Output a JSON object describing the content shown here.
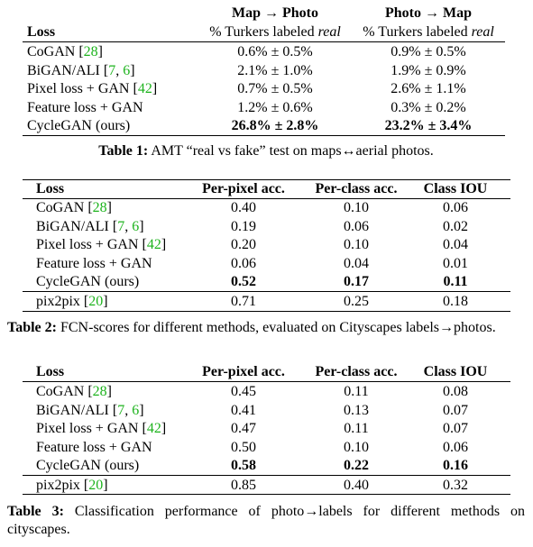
{
  "tables": [
    {
      "columns": [
        {
          "label": [
            {
              "text": "Loss"
            }
          ]
        },
        {
          "title": "Map → Photo",
          "label": [
            {
              "text": "% Turkers labeled "
            },
            {
              "text": "real",
              "style": "italic"
            }
          ]
        },
        {
          "title": "Photo → Map",
          "label": [
            {
              "text": "% Turkers labeled "
            },
            {
              "text": "real",
              "style": "italic"
            }
          ]
        }
      ],
      "groups": [
        [
          {
            "loss": [
              {
                "text": "CoGAN ["
              },
              {
                "text": "28",
                "style": "cite"
              },
              {
                "text": "]"
              }
            ],
            "values": [
              "0.6% ± 0.5%",
              "0.9% ± 0.5%"
            ]
          },
          {
            "loss": [
              {
                "text": "BiGAN/ALI ["
              },
              {
                "text": "7",
                "style": "cite"
              },
              {
                "text": ", "
              },
              {
                "text": "6",
                "style": "cite"
              },
              {
                "text": "]"
              }
            ],
            "values": [
              "2.1% ± 1.0%",
              "1.9% ± 0.9%"
            ]
          },
          {
            "loss": [
              {
                "text": "Pixel loss + GAN ["
              },
              {
                "text": "42",
                "style": "cite"
              },
              {
                "text": "]"
              }
            ],
            "values": [
              "0.7% ± 0.5%",
              "2.6% ± 1.1%"
            ]
          },
          {
            "loss": [
              {
                "text": "Feature loss + GAN"
              }
            ],
            "values": [
              "1.2% ± 0.6%",
              "0.3% ± 0.2%"
            ]
          },
          {
            "loss": [
              {
                "text": "CycleGAN (ours)"
              }
            ],
            "values": [
              "26.8% ± 2.8%",
              "23.2% ± 3.4%"
            ],
            "bold": true
          }
        ]
      ],
      "caption": {
        "label": "Table 1:",
        "text": "AMT “real vs fake” test on maps↔aerial photos."
      }
    },
    {
      "columns": [
        {
          "label": [
            {
              "text": "Loss"
            }
          ]
        },
        {
          "label": [
            {
              "text": "Per-pixel acc."
            }
          ]
        },
        {
          "label": [
            {
              "text": "Per-class acc."
            }
          ]
        },
        {
          "label": [
            {
              "text": "Class IOU"
            }
          ]
        }
      ],
      "groups": [
        [
          {
            "loss": [
              {
                "text": "CoGAN ["
              },
              {
                "text": "28",
                "style": "cite"
              },
              {
                "text": "]"
              }
            ],
            "values": [
              "0.40",
              "0.10",
              "0.06"
            ]
          },
          {
            "loss": [
              {
                "text": "BiGAN/ALI ["
              },
              {
                "text": "7",
                "style": "cite"
              },
              {
                "text": ", "
              },
              {
                "text": "6",
                "style": "cite"
              },
              {
                "text": "]"
              }
            ],
            "values": [
              "0.19",
              "0.06",
              "0.02"
            ]
          },
          {
            "loss": [
              {
                "text": "Pixel loss + GAN ["
              },
              {
                "text": "42",
                "style": "cite"
              },
              {
                "text": "]"
              }
            ],
            "values": [
              "0.20",
              "0.10",
              "0.04"
            ]
          },
          {
            "loss": [
              {
                "text": "Feature loss + GAN"
              }
            ],
            "values": [
              "0.06",
              "0.04",
              "0.01"
            ]
          },
          {
            "loss": [
              {
                "text": "CycleGAN (ours)"
              }
            ],
            "values": [
              "0.52",
              "0.17",
              "0.11"
            ],
            "bold": true
          }
        ],
        [
          {
            "loss": [
              {
                "text": "pix2pix ["
              },
              {
                "text": "20",
                "style": "cite"
              },
              {
                "text": "]"
              }
            ],
            "values": [
              "0.71",
              "0.25",
              "0.18"
            ]
          }
        ]
      ],
      "caption": {
        "label": "Table 2:",
        "text": "FCN-scores for different methods, evaluated on Cityscapes labels→photos."
      }
    },
    {
      "columns": [
        {
          "label": [
            {
              "text": "Loss"
            }
          ]
        },
        {
          "label": [
            {
              "text": "Per-pixel acc."
            }
          ]
        },
        {
          "label": [
            {
              "text": "Per-class acc."
            }
          ]
        },
        {
          "label": [
            {
              "text": "Class IOU"
            }
          ]
        }
      ],
      "groups": [
        [
          {
            "loss": [
              {
                "text": "CoGAN ["
              },
              {
                "text": "28",
                "style": "cite"
              },
              {
                "text": "]"
              }
            ],
            "values": [
              "0.45",
              "0.11",
              "0.08"
            ]
          },
          {
            "loss": [
              {
                "text": "BiGAN/ALI ["
              },
              {
                "text": "7",
                "style": "cite"
              },
              {
                "text": ", "
              },
              {
                "text": "6",
                "style": "cite"
              },
              {
                "text": "]"
              }
            ],
            "values": [
              "0.41",
              "0.13",
              "0.07"
            ]
          },
          {
            "loss": [
              {
                "text": "Pixel loss + GAN ["
              },
              {
                "text": "42",
                "style": "cite"
              },
              {
                "text": "]"
              }
            ],
            "values": [
              "0.47",
              "0.11",
              "0.07"
            ]
          },
          {
            "loss": [
              {
                "text": "Feature loss + GAN"
              }
            ],
            "values": [
              "0.50",
              "0.10",
              "0.06"
            ]
          },
          {
            "loss": [
              {
                "text": "CycleGAN (ours)"
              }
            ],
            "values": [
              "0.58",
              "0.22",
              "0.16"
            ],
            "bold": true
          }
        ],
        [
          {
            "loss": [
              {
                "text": "pix2pix ["
              },
              {
                "text": "20",
                "style": "cite"
              },
              {
                "text": "]"
              }
            ],
            "values": [
              "0.85",
              "0.40",
              "0.32"
            ]
          }
        ]
      ],
      "caption": {
        "label": "Table 3:",
        "text": "Classification performance of photo→labels for different methods on cityscapes."
      }
    }
  ]
}
